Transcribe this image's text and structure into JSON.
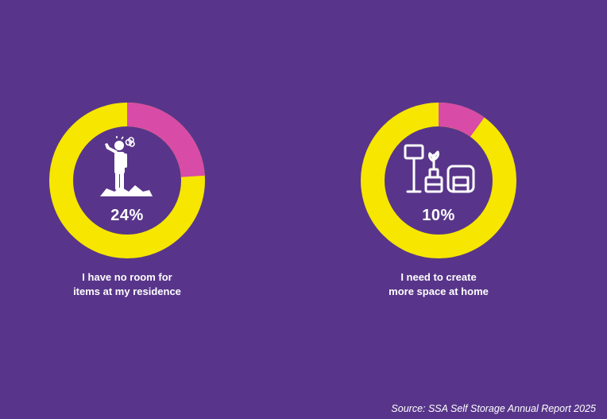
{
  "chart_data": [
    {
      "type": "pie",
      "value_label": "24%",
      "percent": 24,
      "caption_lines": [
        "I have no room for",
        "items at my residence"
      ],
      "icon": "stressed-person-clutter-icon",
      "colors": {
        "highlight": "#d84ba6",
        "remainder": "#f6e600"
      }
    },
    {
      "type": "pie",
      "value_label": "10%",
      "percent": 10,
      "caption_lines": [
        "I need to create",
        "more space at home"
      ],
      "icon": "living-room-furniture-icon",
      "colors": {
        "highlight": "#d84ba6",
        "remainder": "#f6e600"
      }
    }
  ],
  "source": "Source: SSA Self Storage Annual Report 2025",
  "colors": {
    "background": "#58358a",
    "text": "#ffffff"
  }
}
